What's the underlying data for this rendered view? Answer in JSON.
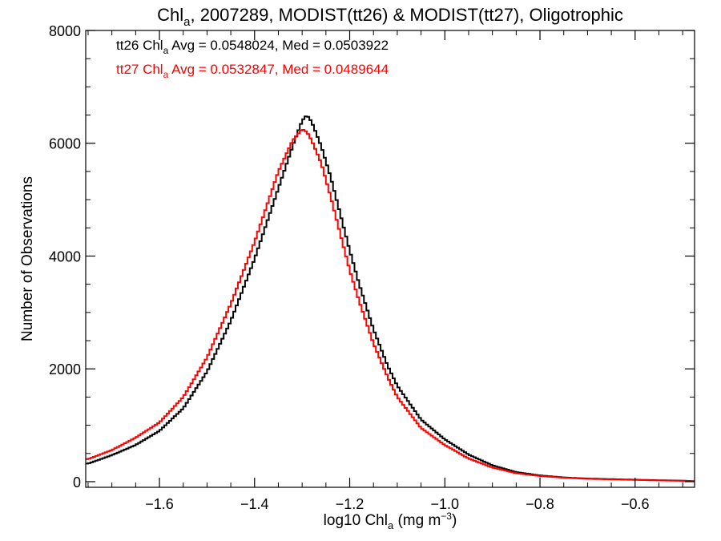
{
  "chart_data": {
    "type": "line",
    "title_parts": {
      "pre": "Chl",
      "sub": "a",
      "post": ", 2007289, MODIST(tt26) & MODIST(tt27), Oligotrophic"
    },
    "xlabel_parts": {
      "pre": "log10 Chl",
      "sub": "a",
      "mid": " (mg m",
      "sup": "−3",
      "post": ")"
    },
    "ylabel": "Number of Observations",
    "xlim": [
      -1.755,
      -0.475
    ],
    "ylim": [
      -100,
      8000
    ],
    "x_ticks": [
      -1.6,
      -1.4,
      -1.2,
      -1.0,
      -0.8,
      -0.6
    ],
    "x_tick_labels": [
      "−1.6",
      "−1.4",
      "−1.2",
      "−1.0",
      "−0.8",
      "−0.6"
    ],
    "y_ticks": [
      0,
      2000,
      4000,
      6000,
      8000
    ],
    "y_tick_labels": [
      "0",
      "2000",
      "4000",
      "6000",
      "8000"
    ],
    "grid": false,
    "legend_placement": "top-left",
    "series": [
      {
        "name": "tt26",
        "color": "#000000",
        "legend_parts": {
          "pre": "tt26 Chl",
          "sub": "a",
          "post": " Avg = 0.0548024, Med = 0.0503922"
        },
        "x": [
          -1.75,
          -1.7,
          -1.65,
          -1.6,
          -1.55,
          -1.5,
          -1.45,
          -1.4,
          -1.35,
          -1.32,
          -1.3,
          -1.29,
          -1.28,
          -1.26,
          -1.24,
          -1.22,
          -1.2,
          -1.18,
          -1.15,
          -1.12,
          -1.1,
          -1.05,
          -1.0,
          -0.95,
          -0.9,
          -0.85,
          -0.8,
          -0.75,
          -0.7,
          -0.65,
          -0.6,
          -0.55,
          -0.5,
          -0.48
        ],
        "y": [
          320,
          470,
          650,
          900,
          1300,
          1950,
          2850,
          3950,
          5200,
          5950,
          6400,
          6500,
          6380,
          5950,
          5400,
          4750,
          4100,
          3500,
          2700,
          2050,
          1700,
          1100,
          750,
          480,
          290,
          170,
          110,
          75,
          55,
          45,
          35,
          25,
          18,
          10
        ]
      },
      {
        "name": "tt27",
        "color": "#ff0000",
        "legend_parts": {
          "pre": "tt27 Chl",
          "sub": "a",
          "post": " Avg = 0.0532847, Med = 0.0489644"
        },
        "x": [
          -1.75,
          -1.7,
          -1.65,
          -1.6,
          -1.55,
          -1.5,
          -1.45,
          -1.4,
          -1.35,
          -1.32,
          -1.3,
          -1.29,
          -1.28,
          -1.26,
          -1.24,
          -1.22,
          -1.2,
          -1.18,
          -1.15,
          -1.12,
          -1.1,
          -1.05,
          -1.0,
          -0.95,
          -0.9,
          -0.85,
          -0.8,
          -0.75,
          -0.7,
          -0.65,
          -0.6,
          -0.55,
          -0.5,
          -0.48
        ],
        "y": [
          400,
          560,
          780,
          1050,
          1500,
          2200,
          3150,
          4250,
          5500,
          6050,
          6250,
          6200,
          6050,
          5650,
          5050,
          4400,
          3750,
          3200,
          2450,
          1850,
          1500,
          950,
          650,
          410,
          250,
          150,
          100,
          70,
          50,
          40,
          32,
          22,
          15,
          8
        ]
      }
    ]
  }
}
